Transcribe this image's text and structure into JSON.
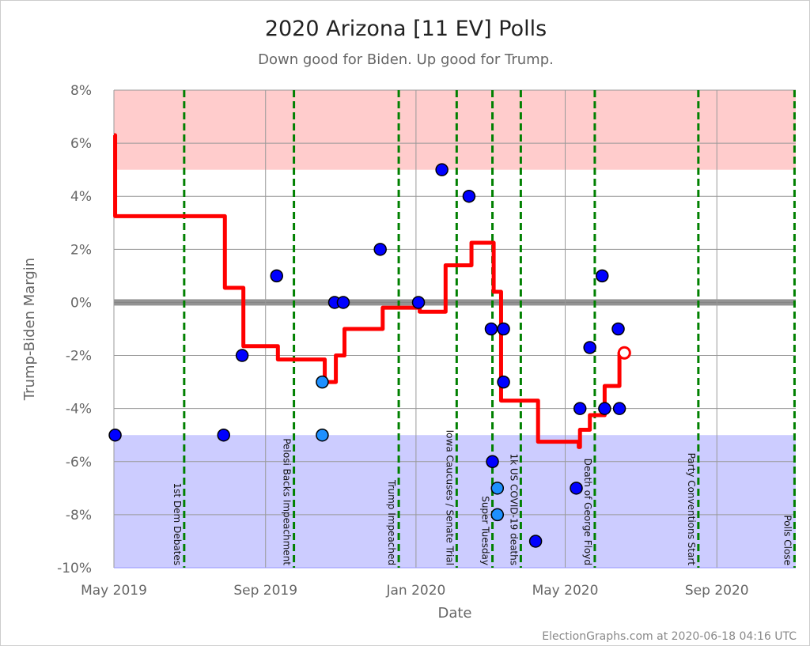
{
  "chart_data": {
    "type": "scatter",
    "title": "2020 Arizona [11 EV] Polls",
    "subtitle": "Down good for Biden. Up good for Trump.",
    "xlabel": "Date",
    "ylabel": "Trump-Biden Margin",
    "xlim": [
      "2019-05-01",
      "2020-11-04"
    ],
    "ylim": [
      -10,
      8
    ],
    "x_ticks": [
      {
        "date": "2019-05-01",
        "label": "May 2019"
      },
      {
        "date": "2019-09-01",
        "label": "Sep 2019"
      },
      {
        "date": "2020-01-01",
        "label": "Jan 2020"
      },
      {
        "date": "2020-05-01",
        "label": "May 2020"
      },
      {
        "date": "2020-09-01",
        "label": "Sep 2020"
      }
    ],
    "y_ticks": [
      8,
      6,
      4,
      2,
      0,
      -2,
      -4,
      -6,
      -8,
      -10
    ],
    "y_tick_labels": [
      "8%",
      "6%",
      "4%",
      "2%",
      "0%",
      "-2%",
      "-4%",
      "-6%",
      "-8%",
      "-10%"
    ],
    "grid": true,
    "bands": [
      {
        "from": 5,
        "to": 8,
        "color": "#ffcccc"
      },
      {
        "from": -10,
        "to": -5,
        "color": "#ccccff"
      }
    ],
    "events": [
      {
        "date": "2019-06-27",
        "label": "1st Dem Debates"
      },
      {
        "date": "2019-09-24",
        "label": "Pelosi Backs Impeachment"
      },
      {
        "date": "2019-12-18",
        "label": "Trump Impeached"
      },
      {
        "date": "2020-02-03",
        "label": "Iowa Caucuses / Senate Trial"
      },
      {
        "date": "2020-03-03",
        "label": "Super Tuesday"
      },
      {
        "date": "2020-03-26",
        "label": "1k US COVID-19 deaths"
      },
      {
        "date": "2020-05-25",
        "label": "Death of George Floyd"
      },
      {
        "date": "2020-08-17",
        "label": "Party Conventions Start"
      },
      {
        "date": "2020-11-03",
        "label": "Polls Close"
      }
    ],
    "polls": [
      {
        "date": "2019-05-02",
        "value": -5,
        "kind": "dark"
      },
      {
        "date": "2019-07-29",
        "value": -5,
        "kind": "dark"
      },
      {
        "date": "2019-08-13",
        "value": -2,
        "kind": "dark"
      },
      {
        "date": "2019-09-10",
        "value": 1,
        "kind": "dark"
      },
      {
        "date": "2019-10-17",
        "value": -3,
        "kind": "light"
      },
      {
        "date": "2019-10-17",
        "value": -5,
        "kind": "light"
      },
      {
        "date": "2019-10-27",
        "value": 0,
        "kind": "dark"
      },
      {
        "date": "2019-11-03",
        "value": 0,
        "kind": "dark"
      },
      {
        "date": "2019-12-03",
        "value": 2,
        "kind": "dark"
      },
      {
        "date": "2020-01-03",
        "value": 0,
        "kind": "dark"
      },
      {
        "date": "2020-01-22",
        "value": 5,
        "kind": "dark"
      },
      {
        "date": "2020-02-13",
        "value": 4,
        "kind": "dark"
      },
      {
        "date": "2020-03-02",
        "value": -1,
        "kind": "dark"
      },
      {
        "date": "2020-03-12",
        "value": -1,
        "kind": "dark"
      },
      {
        "date": "2020-03-03",
        "value": -6,
        "kind": "dark"
      },
      {
        "date": "2020-03-07",
        "value": -7,
        "kind": "light"
      },
      {
        "date": "2020-03-07",
        "value": -8,
        "kind": "light"
      },
      {
        "date": "2020-03-12",
        "value": -3,
        "kind": "dark"
      },
      {
        "date": "2020-04-07",
        "value": -9,
        "kind": "dark"
      },
      {
        "date": "2020-05-10",
        "value": -7,
        "kind": "dark"
      },
      {
        "date": "2020-05-13",
        "value": -4,
        "kind": "dark"
      },
      {
        "date": "2020-05-21",
        "value": -1.7,
        "kind": "dark"
      },
      {
        "date": "2020-05-31",
        "value": 1,
        "kind": "dark"
      },
      {
        "date": "2020-06-02",
        "value": -4,
        "kind": "dark"
      },
      {
        "date": "2020-06-13",
        "value": -1,
        "kind": "dark"
      },
      {
        "date": "2020-06-14",
        "value": -4,
        "kind": "dark"
      }
    ],
    "average": [
      {
        "date": "2019-05-01",
        "value": 6.3
      },
      {
        "date": "2019-05-02",
        "value": 3.25
      },
      {
        "date": "2019-07-30",
        "value": 0.55
      },
      {
        "date": "2019-08-14",
        "value": -1.65
      },
      {
        "date": "2019-09-11",
        "value": -2.15
      },
      {
        "date": "2019-10-19",
        "value": -3.0
      },
      {
        "date": "2019-10-28",
        "value": -2.0
      },
      {
        "date": "2019-11-04",
        "value": -1.0
      },
      {
        "date": "2019-12-05",
        "value": -0.2
      },
      {
        "date": "2020-01-04",
        "value": -0.35
      },
      {
        "date": "2020-01-25",
        "value": 1.4
      },
      {
        "date": "2020-02-15",
        "value": 2.25
      },
      {
        "date": "2020-03-04",
        "value": 0.4
      },
      {
        "date": "2020-03-10",
        "value": -3.7
      },
      {
        "date": "2020-04-09",
        "value": -5.25
      },
      {
        "date": "2020-05-12",
        "value": -5.45
      },
      {
        "date": "2020-05-13",
        "value": -4.8
      },
      {
        "date": "2020-05-21",
        "value": -4.25
      },
      {
        "date": "2020-06-02",
        "value": -3.15
      },
      {
        "date": "2020-06-14",
        "value": -1.9
      },
      {
        "date": "2020-06-18",
        "value": -1.9
      }
    ],
    "colors": {
      "average": "#ff0000",
      "poll_dark": "#0000ff",
      "poll_light": "#1e90ff",
      "event_line": "#008000",
      "zero_line": "#808080"
    }
  },
  "footer": "ElectionGraphs.com at 2020-06-18 04:16 UTC"
}
